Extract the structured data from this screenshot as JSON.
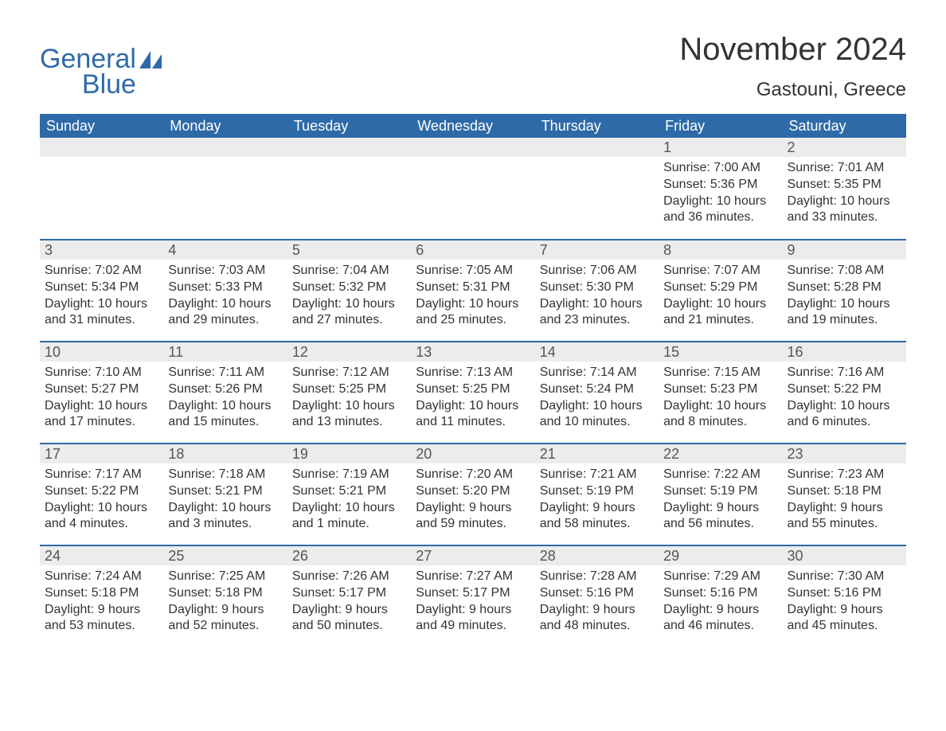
{
  "logo": {
    "word1": "General",
    "word2": "Blue",
    "color": "#2f6aa8"
  },
  "header": {
    "month_title": "November 2024",
    "location": "Gastouni, Greece"
  },
  "colors": {
    "header_bg": "#2f6aa8",
    "header_text": "#ffffff",
    "daynum_bg": "#ececec",
    "daynum_text": "#555555",
    "body_text": "#333333",
    "row_border": "#2f6aa8",
    "page_bg": "#ffffff"
  },
  "weekdays": [
    "Sunday",
    "Monday",
    "Tuesday",
    "Wednesday",
    "Thursday",
    "Friday",
    "Saturday"
  ],
  "labels": {
    "sunrise": "Sunrise:",
    "sunset": "Sunset:",
    "daylight": "Daylight:"
  },
  "weeks": [
    [
      null,
      null,
      null,
      null,
      null,
      {
        "day": "1",
        "sunrise": "7:00 AM",
        "sunset": "5:36 PM",
        "daylight": "10 hours and 36 minutes."
      },
      {
        "day": "2",
        "sunrise": "7:01 AM",
        "sunset": "5:35 PM",
        "daylight": "10 hours and 33 minutes."
      }
    ],
    [
      {
        "day": "3",
        "sunrise": "7:02 AM",
        "sunset": "5:34 PM",
        "daylight": "10 hours and 31 minutes."
      },
      {
        "day": "4",
        "sunrise": "7:03 AM",
        "sunset": "5:33 PM",
        "daylight": "10 hours and 29 minutes."
      },
      {
        "day": "5",
        "sunrise": "7:04 AM",
        "sunset": "5:32 PM",
        "daylight": "10 hours and 27 minutes."
      },
      {
        "day": "6",
        "sunrise": "7:05 AM",
        "sunset": "5:31 PM",
        "daylight": "10 hours and 25 minutes."
      },
      {
        "day": "7",
        "sunrise": "7:06 AM",
        "sunset": "5:30 PM",
        "daylight": "10 hours and 23 minutes."
      },
      {
        "day": "8",
        "sunrise": "7:07 AM",
        "sunset": "5:29 PM",
        "daylight": "10 hours and 21 minutes."
      },
      {
        "day": "9",
        "sunrise": "7:08 AM",
        "sunset": "5:28 PM",
        "daylight": "10 hours and 19 minutes."
      }
    ],
    [
      {
        "day": "10",
        "sunrise": "7:10 AM",
        "sunset": "5:27 PM",
        "daylight": "10 hours and 17 minutes."
      },
      {
        "day": "11",
        "sunrise": "7:11 AM",
        "sunset": "5:26 PM",
        "daylight": "10 hours and 15 minutes."
      },
      {
        "day": "12",
        "sunrise": "7:12 AM",
        "sunset": "5:25 PM",
        "daylight": "10 hours and 13 minutes."
      },
      {
        "day": "13",
        "sunrise": "7:13 AM",
        "sunset": "5:25 PM",
        "daylight": "10 hours and 11 minutes."
      },
      {
        "day": "14",
        "sunrise": "7:14 AM",
        "sunset": "5:24 PM",
        "daylight": "10 hours and 10 minutes."
      },
      {
        "day": "15",
        "sunrise": "7:15 AM",
        "sunset": "5:23 PM",
        "daylight": "10 hours and 8 minutes."
      },
      {
        "day": "16",
        "sunrise": "7:16 AM",
        "sunset": "5:22 PM",
        "daylight": "10 hours and 6 minutes."
      }
    ],
    [
      {
        "day": "17",
        "sunrise": "7:17 AM",
        "sunset": "5:22 PM",
        "daylight": "10 hours and 4 minutes."
      },
      {
        "day": "18",
        "sunrise": "7:18 AM",
        "sunset": "5:21 PM",
        "daylight": "10 hours and 3 minutes."
      },
      {
        "day": "19",
        "sunrise": "7:19 AM",
        "sunset": "5:21 PM",
        "daylight": "10 hours and 1 minute."
      },
      {
        "day": "20",
        "sunrise": "7:20 AM",
        "sunset": "5:20 PM",
        "daylight": "9 hours and 59 minutes."
      },
      {
        "day": "21",
        "sunrise": "7:21 AM",
        "sunset": "5:19 PM",
        "daylight": "9 hours and 58 minutes."
      },
      {
        "day": "22",
        "sunrise": "7:22 AM",
        "sunset": "5:19 PM",
        "daylight": "9 hours and 56 minutes."
      },
      {
        "day": "23",
        "sunrise": "7:23 AM",
        "sunset": "5:18 PM",
        "daylight": "9 hours and 55 minutes."
      }
    ],
    [
      {
        "day": "24",
        "sunrise": "7:24 AM",
        "sunset": "5:18 PM",
        "daylight": "9 hours and 53 minutes."
      },
      {
        "day": "25",
        "sunrise": "7:25 AM",
        "sunset": "5:18 PM",
        "daylight": "9 hours and 52 minutes."
      },
      {
        "day": "26",
        "sunrise": "7:26 AM",
        "sunset": "5:17 PM",
        "daylight": "9 hours and 50 minutes."
      },
      {
        "day": "27",
        "sunrise": "7:27 AM",
        "sunset": "5:17 PM",
        "daylight": "9 hours and 49 minutes."
      },
      {
        "day": "28",
        "sunrise": "7:28 AM",
        "sunset": "5:16 PM",
        "daylight": "9 hours and 48 minutes."
      },
      {
        "day": "29",
        "sunrise": "7:29 AM",
        "sunset": "5:16 PM",
        "daylight": "9 hours and 46 minutes."
      },
      {
        "day": "30",
        "sunrise": "7:30 AM",
        "sunset": "5:16 PM",
        "daylight": "9 hours and 45 minutes."
      }
    ]
  ]
}
